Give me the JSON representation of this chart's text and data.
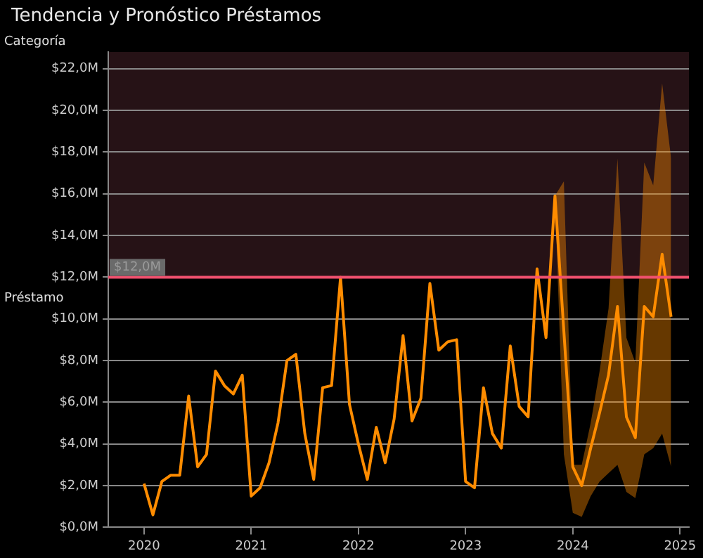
{
  "chart_data": {
    "type": "line",
    "title": "Tendencia y Pronóstico Préstamos",
    "ylabel": "Préstamo",
    "annotations": [
      "Categoría"
    ],
    "x": [
      "2020-01",
      "2020-02",
      "2020-03",
      "2020-04",
      "2020-05",
      "2020-06",
      "2020-07",
      "2020-08",
      "2020-09",
      "2020-10",
      "2020-11",
      "2020-12",
      "2021-01",
      "2021-02",
      "2021-03",
      "2021-04",
      "2021-05",
      "2021-06",
      "2021-07",
      "2021-08",
      "2021-09",
      "2021-10",
      "2021-11",
      "2021-12",
      "2022-01",
      "2022-02",
      "2022-03",
      "2022-04",
      "2022-05",
      "2022-06",
      "2022-07",
      "2022-08",
      "2022-09",
      "2022-10",
      "2022-11",
      "2022-12",
      "2023-01",
      "2023-02",
      "2023-03",
      "2023-04",
      "2023-05",
      "2023-06",
      "2023-07",
      "2023-08",
      "2023-09",
      "2023-10",
      "2023-11",
      "2023-12",
      "2024-01",
      "2024-02",
      "2024-03",
      "2024-04",
      "2024-05",
      "2024-06",
      "2024-07",
      "2024-08",
      "2024-09",
      "2024-10",
      "2024-11",
      "2024-12"
    ],
    "series": [
      {
        "color": "#ff8c00",
        "values": [
          2.1,
          0.6,
          2.2,
          2.5,
          2.5,
          6.3,
          2.9,
          3.5,
          7.5,
          6.8,
          6.4,
          7.3,
          1.5,
          1.9,
          3.1,
          5.0,
          8.0,
          8.3,
          4.5,
          2.3,
          6.7,
          6.8,
          12.0,
          5.9,
          4.0,
          2.3,
          4.8,
          3.1,
          5.2,
          9.2,
          5.1,
          6.2,
          11.7,
          8.5,
          8.9,
          9.0,
          2.2,
          1.9,
          6.7,
          4.5,
          3.8,
          8.7,
          5.8,
          5.3,
          12.4,
          9.1,
          15.9,
          9.4,
          2.9,
          2.0,
          3.8,
          5.5,
          7.3,
          10.6,
          5.3,
          4.3,
          10.6,
          10.1,
          13.1,
          10.1
        ],
        "lower": [
          null,
          null,
          null,
          null,
          null,
          null,
          null,
          null,
          null,
          null,
          null,
          null,
          null,
          null,
          null,
          null,
          null,
          null,
          null,
          null,
          null,
          null,
          null,
          null,
          null,
          null,
          null,
          null,
          null,
          null,
          null,
          null,
          null,
          null,
          null,
          null,
          null,
          null,
          null,
          null,
          null,
          null,
          null,
          null,
          null,
          null,
          15.9,
          3.5,
          0.7,
          0.5,
          1.5,
          2.2,
          2.6,
          3.0,
          1.7,
          1.4,
          3.5,
          3.8,
          4.5,
          2.9
        ],
        "upper": [
          null,
          null,
          null,
          null,
          null,
          null,
          null,
          null,
          null,
          null,
          null,
          null,
          null,
          null,
          null,
          null,
          null,
          null,
          null,
          null,
          null,
          null,
          null,
          null,
          null,
          null,
          null,
          null,
          null,
          null,
          null,
          null,
          null,
          null,
          null,
          null,
          null,
          null,
          null,
          null,
          null,
          null,
          null,
          null,
          null,
          null,
          15.9,
          16.6,
          3.0,
          3.0,
          5.0,
          7.5,
          10.5,
          17.7,
          9.1,
          7.9,
          17.5,
          16.4,
          21.3,
          17.7
        ]
      }
    ],
    "xlim": [
      "2019-09",
      "2025-02"
    ],
    "xticks": [
      "2020",
      "2021",
      "2022",
      "2023",
      "2024",
      "2025"
    ],
    "ylim": [
      0,
      22.8
    ],
    "yticks": [
      {
        "value": 0,
        "label": "$0,0M"
      },
      {
        "value": 2,
        "label": "$2,0M"
      },
      {
        "value": 4,
        "label": "$4,0M"
      },
      {
        "value": 6,
        "label": "$6,0M"
      },
      {
        "value": 8,
        "label": "$8,0M"
      },
      {
        "value": 10,
        "label": "$10,0M"
      },
      {
        "value": 12,
        "label": "$12,0M"
      },
      {
        "value": 14,
        "label": "$14,0M"
      },
      {
        "value": 16,
        "label": "$16,0M"
      },
      {
        "value": 18,
        "label": "$18,0M"
      },
      {
        "value": 20,
        "label": "$20,0M"
      },
      {
        "value": 22,
        "label": "$22,0M"
      }
    ],
    "ref_lines": [
      {
        "axis": "y",
        "value": 12,
        "label": "$12,0M",
        "color": "#f0506e"
      }
    ],
    "bands": [
      {
        "axis": "y",
        "from": 12,
        "to": 22.8,
        "color": "#261216"
      }
    ],
    "grid": "y",
    "legend": false,
    "marker": "none",
    "line_style": "solid"
  }
}
